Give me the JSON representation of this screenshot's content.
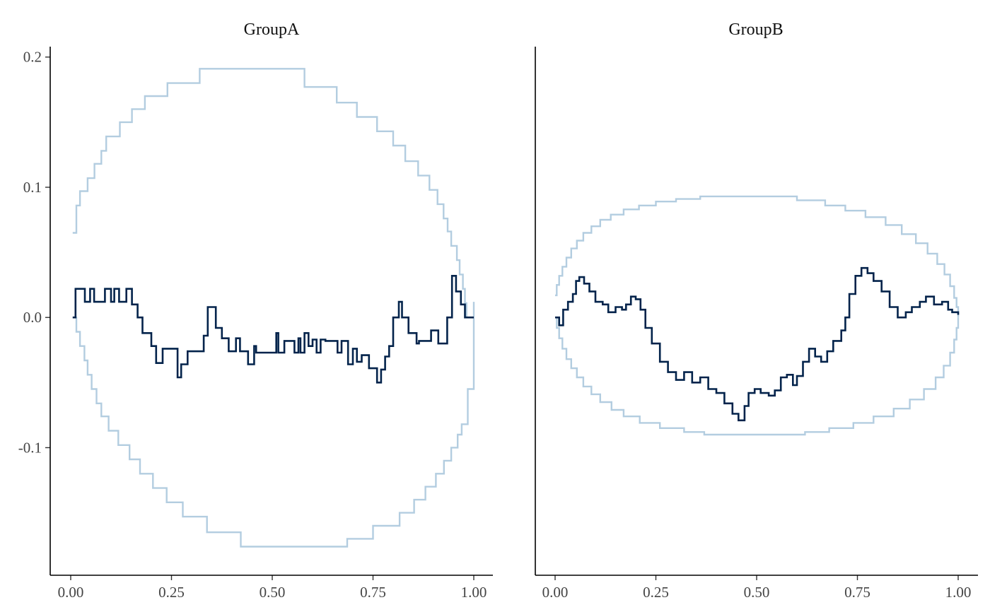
{
  "colors": {
    "band": "#b3cde0",
    "walk": "#03234b"
  },
  "chart_data": [
    {
      "type": "line",
      "title": "GroupA",
      "xlabel": "",
      "ylabel": "",
      "xlim": [
        0,
        1
      ],
      "ylim": [
        -0.198,
        0.208
      ],
      "x_ticks": [
        "0.00",
        "0.25",
        "0.50",
        "0.75",
        "1.00"
      ],
      "y_ticks": [
        "0.2",
        "0.1",
        "0.0",
        "-0.1"
      ],
      "y_tick_values": [
        0.2,
        0.1,
        0.0,
        -0.1
      ],
      "grid": false,
      "series": [
        {
          "role": "upper",
          "color": "#b3cde0",
          "step": true,
          "x": [
            0.005,
            0.014,
            0.023,
            0.042,
            0.059,
            0.076,
            0.088,
            0.122,
            0.152,
            0.184,
            0.24,
            0.32,
            0.58,
            0.66,
            0.71,
            0.76,
            0.8,
            0.83,
            0.862,
            0.89,
            0.91,
            0.925,
            0.935,
            0.944,
            0.958,
            0.965,
            0.973,
            0.978,
            0.982,
            0.99
          ],
          "y": [
            0.065,
            0.086,
            0.097,
            0.107,
            0.118,
            0.128,
            0.139,
            0.15,
            0.16,
            0.17,
            0.18,
            0.191,
            0.177,
            0.165,
            0.154,
            0.143,
            0.132,
            0.12,
            0.109,
            0.098,
            0.087,
            0.076,
            0.066,
            0.055,
            0.044,
            0.033,
            0.022,
            0.011,
            0.0,
            0.0
          ]
        },
        {
          "role": "lower",
          "color": "#b3cde0",
          "step": true,
          "x": [
            0.005,
            0.014,
            0.023,
            0.034,
            0.042,
            0.052,
            0.064,
            0.076,
            0.094,
            0.118,
            0.146,
            0.172,
            0.204,
            0.238,
            0.278,
            0.338,
            0.422,
            0.686,
            0.75,
            0.816,
            0.852,
            0.88,
            0.906,
            0.926,
            0.944,
            0.96,
            0.97,
            0.985,
            1.0
          ],
          "y": [
            0.0,
            -0.011,
            -0.022,
            -0.033,
            -0.044,
            -0.055,
            -0.066,
            -0.076,
            -0.087,
            -0.098,
            -0.109,
            -0.12,
            -0.131,
            -0.142,
            -0.153,
            -0.165,
            -0.176,
            -0.17,
            -0.16,
            -0.15,
            -0.14,
            -0.13,
            -0.12,
            -0.11,
            -0.1,
            -0.09,
            -0.082,
            -0.055,
            0.012
          ]
        },
        {
          "role": "path",
          "color": "#03234b",
          "step": true,
          "x": [
            0.005,
            0.012,
            0.035,
            0.048,
            0.058,
            0.085,
            0.1,
            0.108,
            0.12,
            0.138,
            0.152,
            0.166,
            0.178,
            0.2,
            0.212,
            0.228,
            0.265,
            0.274,
            0.29,
            0.33,
            0.34,
            0.36,
            0.375,
            0.392,
            0.41,
            0.42,
            0.44,
            0.455,
            0.46,
            0.51,
            0.515,
            0.53,
            0.555,
            0.565,
            0.57,
            0.58,
            0.59,
            0.6,
            0.61,
            0.62,
            0.632,
            0.662,
            0.672,
            0.688,
            0.7,
            0.71,
            0.722,
            0.74,
            0.76,
            0.77,
            0.78,
            0.79,
            0.8,
            0.814,
            0.822,
            0.838,
            0.858,
            0.864,
            0.894,
            0.912,
            0.934,
            0.946,
            0.956,
            0.968,
            0.978,
            0.99,
            1.0
          ],
          "y": [
            0.0,
            0.022,
            0.012,
            0.022,
            0.012,
            0.022,
            0.012,
            0.022,
            0.012,
            0.022,
            0.01,
            0.0,
            -0.012,
            -0.022,
            -0.035,
            -0.024,
            -0.046,
            -0.036,
            -0.026,
            -0.014,
            0.008,
            -0.008,
            -0.016,
            -0.026,
            -0.016,
            -0.026,
            -0.036,
            -0.022,
            -0.027,
            -0.012,
            -0.027,
            -0.018,
            -0.027,
            -0.016,
            -0.027,
            -0.012,
            -0.022,
            -0.017,
            -0.027,
            -0.017,
            -0.018,
            -0.027,
            -0.018,
            -0.036,
            -0.024,
            -0.034,
            -0.029,
            -0.039,
            -0.05,
            -0.04,
            -0.03,
            -0.022,
            0.0,
            0.012,
            0.0,
            -0.012,
            -0.02,
            -0.018,
            -0.01,
            -0.02,
            0.0,
            0.032,
            0.02,
            0.01,
            0.0,
            0.0,
            0.0
          ]
        }
      ]
    },
    {
      "type": "line",
      "title": "GroupB",
      "xlabel": "",
      "ylabel": "",
      "xlim": [
        0,
        1
      ],
      "ylim": [
        -0.198,
        0.208
      ],
      "x_ticks": [
        "0.00",
        "0.25",
        "0.50",
        "0.75",
        "1.00"
      ],
      "y_ticks": [],
      "grid": false,
      "series": [
        {
          "role": "upper",
          "color": "#b3cde0",
          "step": true,
          "x": [
            0.0,
            0.004,
            0.01,
            0.018,
            0.028,
            0.04,
            0.054,
            0.07,
            0.09,
            0.112,
            0.138,
            0.17,
            0.208,
            0.25,
            0.3,
            0.36,
            0.46,
            0.6,
            0.67,
            0.72,
            0.77,
            0.82,
            0.86,
            0.895,
            0.924,
            0.948,
            0.966,
            0.98,
            0.99,
            0.996,
            1.0
          ],
          "y": [
            0.017,
            0.025,
            0.032,
            0.039,
            0.046,
            0.053,
            0.059,
            0.065,
            0.07,
            0.075,
            0.079,
            0.083,
            0.086,
            0.089,
            0.091,
            0.093,
            0.093,
            0.09,
            0.086,
            0.082,
            0.077,
            0.071,
            0.064,
            0.057,
            0.049,
            0.041,
            0.033,
            0.024,
            0.015,
            0.008,
            0.0
          ]
        },
        {
          "role": "lower",
          "color": "#b3cde0",
          "step": true,
          "x": [
            0.0,
            0.004,
            0.01,
            0.018,
            0.028,
            0.04,
            0.054,
            0.07,
            0.09,
            0.112,
            0.14,
            0.17,
            0.21,
            0.26,
            0.32,
            0.37,
            0.42,
            0.62,
            0.68,
            0.74,
            0.79,
            0.84,
            0.88,
            0.915,
            0.944,
            0.964,
            0.98,
            0.99,
            0.996,
            1.0
          ],
          "y": [
            0.0,
            -0.008,
            -0.016,
            -0.024,
            -0.032,
            -0.039,
            -0.046,
            -0.053,
            -0.059,
            -0.065,
            -0.071,
            -0.076,
            -0.081,
            -0.085,
            -0.088,
            -0.09,
            -0.09,
            -0.088,
            -0.085,
            -0.081,
            -0.076,
            -0.07,
            -0.063,
            -0.055,
            -0.046,
            -0.037,
            -0.027,
            -0.017,
            -0.008,
            0.0
          ]
        },
        {
          "role": "path",
          "color": "#03234b",
          "step": true,
          "x": [
            0.0,
            0.01,
            0.02,
            0.032,
            0.044,
            0.052,
            0.06,
            0.072,
            0.085,
            0.1,
            0.118,
            0.132,
            0.15,
            0.166,
            0.176,
            0.188,
            0.2,
            0.212,
            0.224,
            0.24,
            0.26,
            0.28,
            0.3,
            0.32,
            0.34,
            0.36,
            0.38,
            0.4,
            0.42,
            0.44,
            0.455,
            0.47,
            0.48,
            0.495,
            0.51,
            0.53,
            0.545,
            0.56,
            0.575,
            0.59,
            0.6,
            0.615,
            0.63,
            0.645,
            0.66,
            0.675,
            0.69,
            0.71,
            0.72,
            0.73,
            0.745,
            0.76,
            0.775,
            0.79,
            0.81,
            0.83,
            0.85,
            0.87,
            0.885,
            0.905,
            0.92,
            0.94,
            0.96,
            0.975,
            0.985,
            1.0
          ],
          "y": [
            0.0,
            -0.006,
            0.006,
            0.012,
            0.018,
            0.028,
            0.031,
            0.026,
            0.02,
            0.012,
            0.01,
            0.004,
            0.008,
            0.006,
            0.01,
            0.016,
            0.014,
            0.006,
            -0.008,
            -0.02,
            -0.034,
            -0.042,
            -0.048,
            -0.042,
            -0.05,
            -0.046,
            -0.055,
            -0.058,
            -0.066,
            -0.074,
            -0.079,
            -0.068,
            -0.058,
            -0.055,
            -0.058,
            -0.06,
            -0.056,
            -0.046,
            -0.044,
            -0.052,
            -0.045,
            -0.034,
            -0.024,
            -0.03,
            -0.034,
            -0.026,
            -0.018,
            -0.01,
            0.0,
            0.018,
            0.032,
            0.038,
            0.034,
            0.028,
            0.02,
            0.008,
            0.0,
            0.004,
            0.008,
            0.012,
            0.016,
            0.01,
            0.012,
            0.006,
            0.004,
            0.002
          ]
        }
      ]
    }
  ]
}
